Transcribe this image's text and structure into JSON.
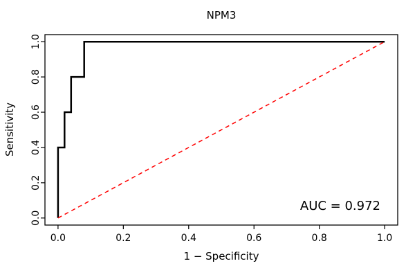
{
  "chart_data": {
    "type": "line",
    "title": "NPM3",
    "xlabel": "1 − Specificity",
    "ylabel": "Sensitivity",
    "annotation": "AUC = 0.972",
    "auc": 0.972,
    "xlim": [
      0,
      1
    ],
    "ylim": [
      0,
      1
    ],
    "grid": false,
    "legend_position": "none",
    "x_ticks": [
      0,
      0.2,
      0.4,
      0.6,
      0.8,
      1
    ],
    "x_tick_labels": [
      "0.0",
      "0.2",
      "0.4",
      "0.6",
      "0.8",
      "1.0"
    ],
    "y_ticks": [
      0,
      0.2,
      0.4,
      0.6,
      0.8,
      1
    ],
    "y_tick_labels": [
      "0.0",
      "0.2",
      "0.4",
      "0.6",
      "0.8",
      "1.0"
    ],
    "colors": {
      "roc_curve": "#000000",
      "reference_diagonal": "#FF0000",
      "axis": "#000000",
      "background": "#FFFFFF"
    },
    "series": [
      {
        "name": "roc-curve",
        "color": "#000000",
        "style": "solid",
        "points": [
          [
            0,
            0
          ],
          [
            0,
            0.4
          ],
          [
            0.02,
            0.4
          ],
          [
            0.02,
            0.6
          ],
          [
            0.04,
            0.6
          ],
          [
            0.04,
            0.8
          ],
          [
            0.08,
            0.8
          ],
          [
            0.08,
            1.0
          ],
          [
            1.0,
            1.0
          ]
        ]
      },
      {
        "name": "reference-diagonal",
        "color": "#FF0000",
        "style": "dashed",
        "points": [
          [
            0,
            0
          ],
          [
            1,
            1
          ]
        ]
      }
    ]
  }
}
